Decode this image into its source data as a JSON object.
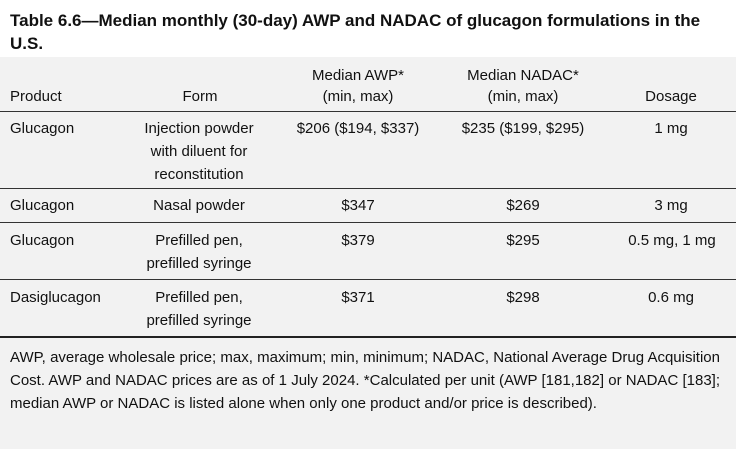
{
  "title": "Table 6.6—Median monthly (30-day) AWP and NADAC of glucagon formulations in the U.S.",
  "headers": {
    "product": "Product",
    "form": "Form",
    "awp_line1": "Median AWP*",
    "awp_line2": "(min, max)",
    "nadac_line1": "Median NADAC*",
    "nadac_line2": "(min, max)",
    "dosage": "Dosage"
  },
  "rows": [
    {
      "product": "Glucagon",
      "form_lines": [
        "Injection powder",
        "with diluent for",
        "reconstitution"
      ],
      "awp": "$206 ($194, $337)",
      "nadac": "$235 ($199, $295)",
      "dosage": "1 mg"
    },
    {
      "product": "Glucagon",
      "form_lines": [
        "Nasal powder"
      ],
      "awp": "$347",
      "nadac": "$269",
      "dosage": "3 mg"
    },
    {
      "product": "Glucagon",
      "form_lines": [
        "Prefilled pen,",
        "prefilled syringe"
      ],
      "awp": "$379",
      "nadac": "$295",
      "dosage": "0.5 mg, 1 mg"
    },
    {
      "product": "Dasiglucagon",
      "form_lines": [
        "Prefilled pen,",
        "prefilled syringe"
      ],
      "awp": "$371",
      "nadac": "$298",
      "dosage": "0.6 mg"
    }
  ],
  "footnote": "AWP, average wholesale price; max, maximum; min, minimum; NADAC, National Average Drug Acquisition Cost. AWP and NADAC prices are as of 1 July 2024. *Calculated per unit (AWP [181,182] or NADAC [183]; median AWP or NADAC is listed alone when only one product and/or price is described)."
}
